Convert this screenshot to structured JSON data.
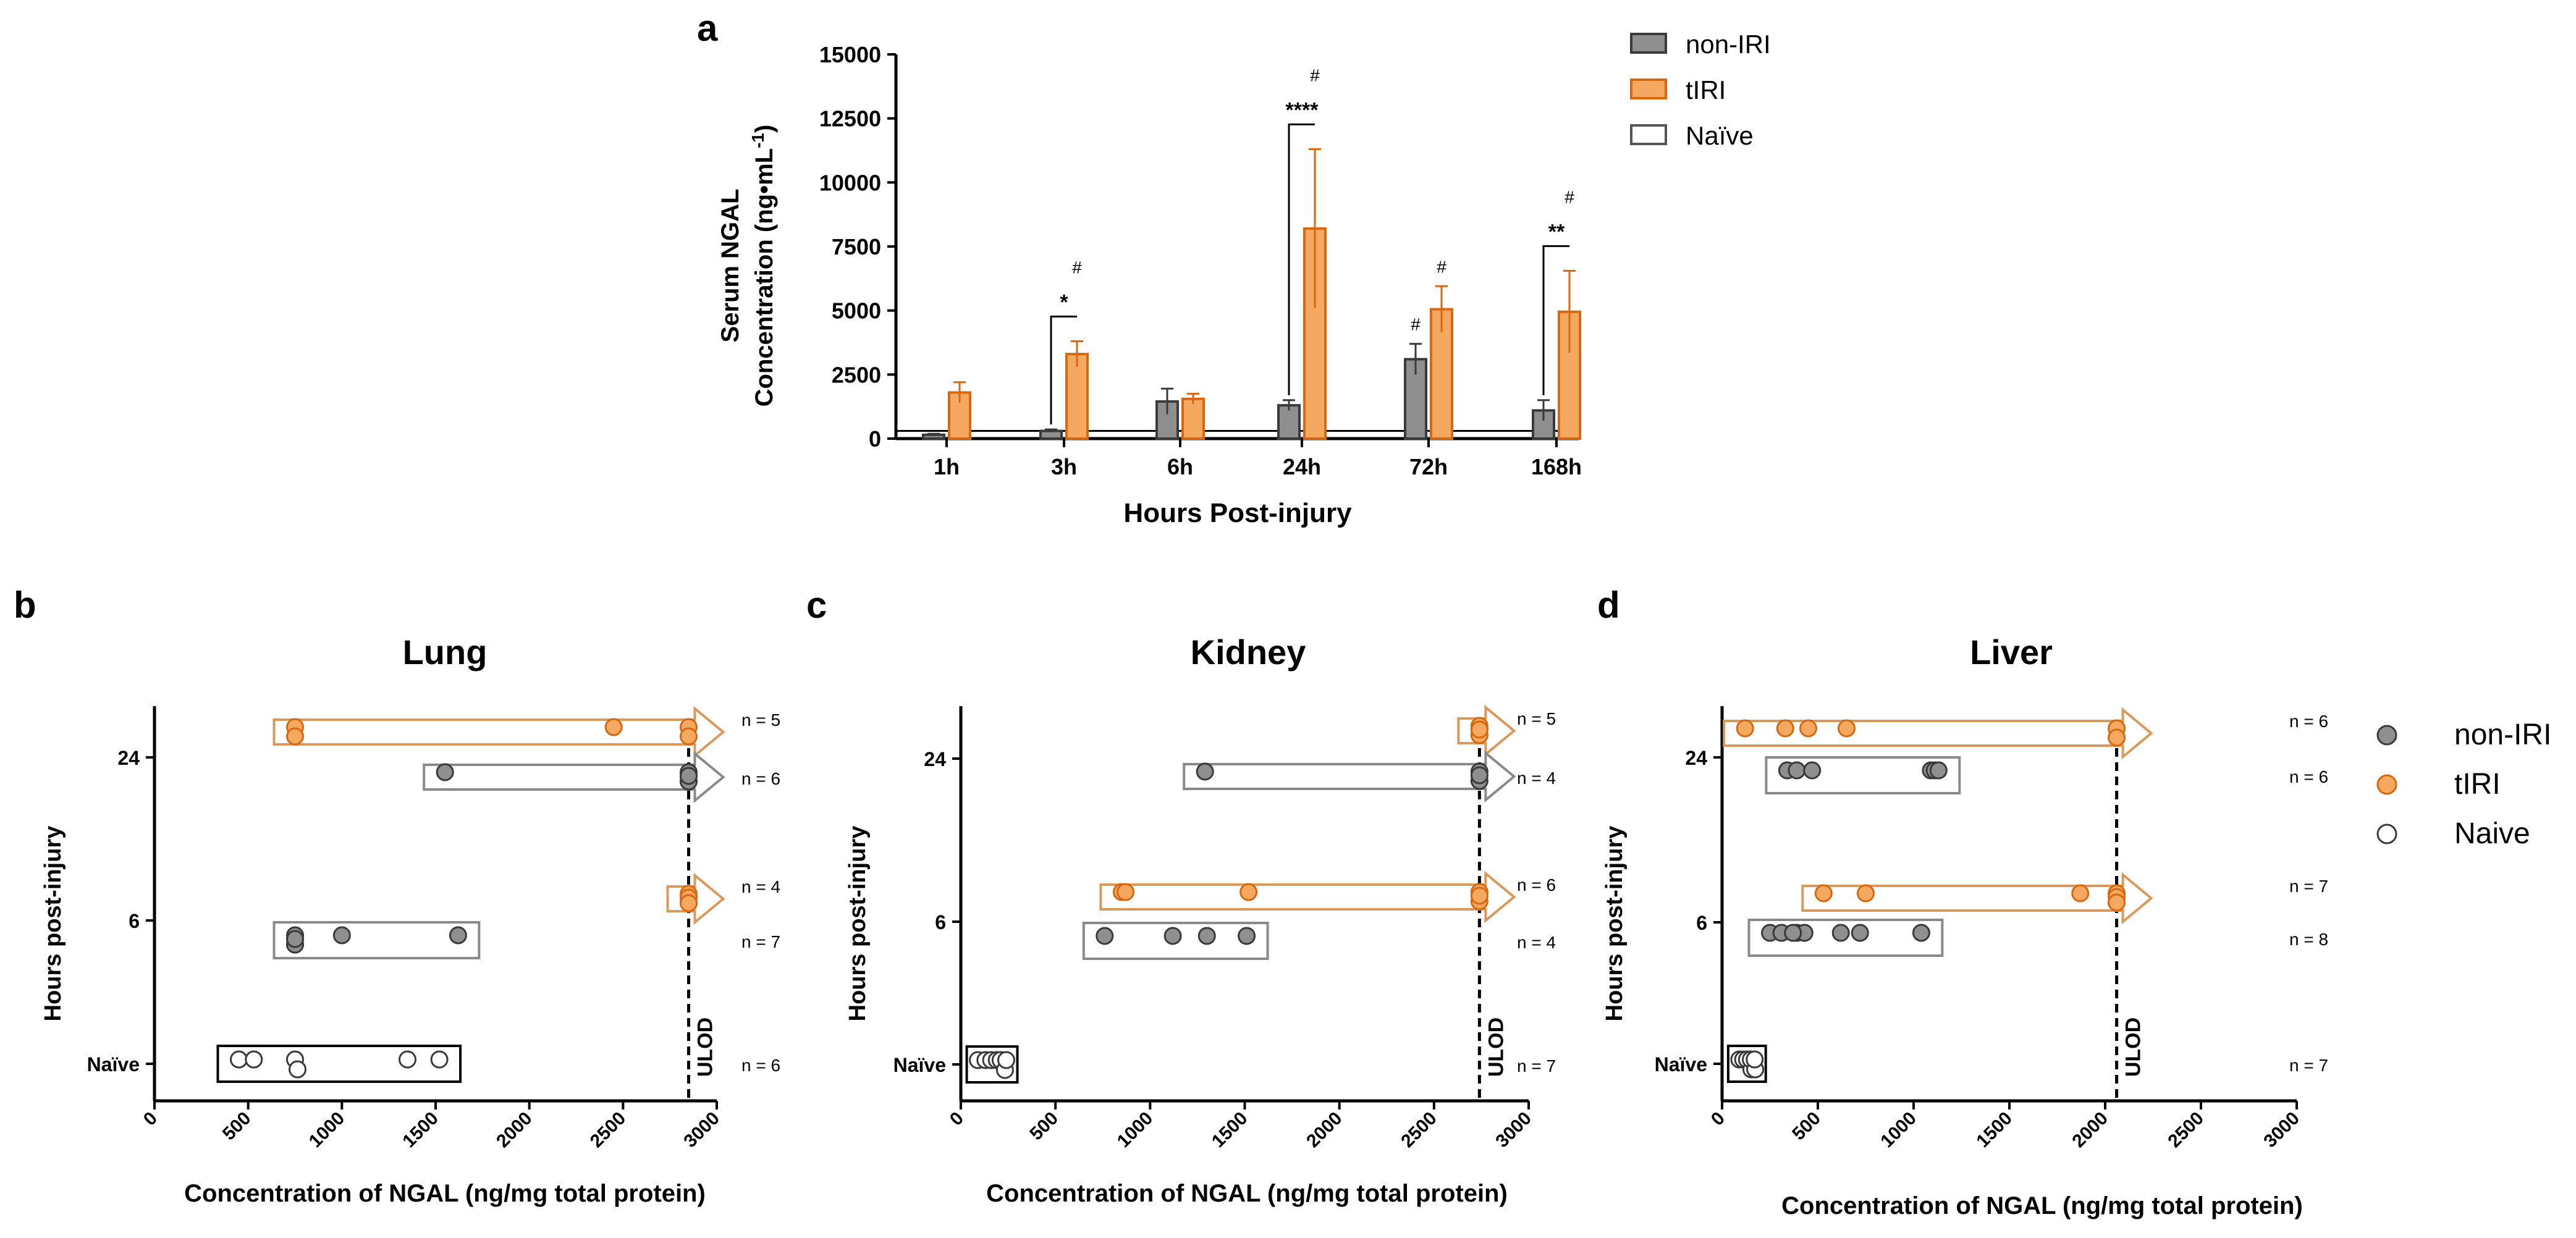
{
  "figure": {
    "panel_labels": [
      "a",
      "b",
      "c",
      "d"
    ],
    "legend_top": [
      "non-IRI",
      "tIRI",
      "Naïve"
    ],
    "legend_right": [
      "non-IRI",
      "tIRI",
      "Naive"
    ],
    "colors": {
      "nonIRI": "#8f8f8f",
      "tIRI": "#f5a860",
      "tIRI_stroke": "#d8680f",
      "naive": "#ffffff",
      "edge": "#3a3a3a"
    }
  },
  "chart_data": [
    {
      "type": "bar",
      "panel": "a",
      "ylabel": "Serum NGAL",
      "ylabel2": "Concentration (ng•mL",
      "ylabel_sup": "-1",
      "ylabel_close": ")",
      "xlabel": "Hours Post-injury",
      "categories": [
        "1h",
        "3h",
        "6h",
        "24h",
        "72h",
        "168h"
      ],
      "ylim": [
        0,
        15000
      ],
      "yticks": [
        0,
        2500,
        5000,
        7500,
        10000,
        12500,
        15000
      ],
      "naive_line": 300,
      "series": [
        {
          "name": "non-IRI",
          "values": [
            150,
            300,
            1450,
            1300,
            3100,
            1100
          ],
          "errors": [
            40,
            60,
            500,
            200,
            600,
            400
          ]
        },
        {
          "name": "tIRI",
          "values": [
            1800,
            3300,
            1550,
            8200,
            5050,
            4950
          ],
          "errors": [
            400,
            500,
            200,
            3100,
            900,
            1600
          ]
        }
      ],
      "significance": [
        {
          "category": "3h",
          "stars": "*",
          "hash": "#"
        },
        {
          "category": "24h",
          "stars": "****",
          "hash": "#"
        },
        {
          "category": "168h",
          "stars": "**",
          "hash": "#"
        }
      ],
      "hash_only": [
        {
          "category": "72h",
          "series": "non-IRI",
          "hash": "#"
        },
        {
          "category": "72h",
          "series": "tIRI",
          "hash": "#"
        }
      ]
    },
    {
      "type": "scatter",
      "panel": "b",
      "title": "Lung",
      "xlabel": "Concentration of NGAL (ng/mg total protein)",
      "ylabel": "Hours post-injury",
      "xlim": [
        0,
        3000
      ],
      "xticks": [
        0,
        500,
        1000,
        1500,
        2000,
        2500,
        3000
      ],
      "yticks": [
        "24",
        "6",
        "Naïve"
      ],
      "ulod": 2850,
      "ulod_label": "ULOD",
      "groups": [
        {
          "row": "24",
          "series": "tIRI",
          "n": "n = 5",
          "arrow": true,
          "x": [
            750,
            750,
            2450,
            2850,
            2850
          ]
        },
        {
          "row": "24",
          "series": "non-IRI",
          "n": "n = 6",
          "arrow": true,
          "x": [
            1550,
            2850,
            2850,
            2850,
            2850,
            2850
          ]
        },
        {
          "row": "6",
          "series": "tIRI",
          "n": "n = 4",
          "arrow": true,
          "x": [
            2850,
            2850,
            2850,
            2850
          ]
        },
        {
          "row": "6",
          "series": "non-IRI",
          "n": "n = 7",
          "arrow": false,
          "x": [
            750,
            750,
            750,
            750,
            750,
            1000,
            1620
          ]
        },
        {
          "row": "Naïve",
          "series": "Naive",
          "n": "n = 6",
          "arrow": false,
          "x": [
            450,
            530,
            750,
            750,
            1350,
            1520
          ]
        }
      ]
    },
    {
      "type": "scatter",
      "panel": "c",
      "title": "Kidney",
      "xlabel": "Concentration of NGAL (ng/mg total protein)",
      "ylabel": "Hours post-injury",
      "xlim": [
        0,
        3000
      ],
      "xticks": [
        0,
        500,
        1000,
        1500,
        2000,
        2500,
        3000
      ],
      "yticks": [
        "24",
        "6",
        "Naïve"
      ],
      "ulod": 2740,
      "ulod_label": "ULOD",
      "groups": [
        {
          "row": "24",
          "series": "tIRI",
          "n": "n = 5",
          "arrow": true,
          "x": [
            2740,
            2740,
            2740,
            2740,
            2740
          ]
        },
        {
          "row": "24",
          "series": "non-IRI",
          "n": "n = 4",
          "arrow": true,
          "x": [
            1290,
            2740,
            2740,
            2740
          ]
        },
        {
          "row": "6",
          "series": "tIRI",
          "n": "n = 6",
          "arrow": true,
          "x": [
            850,
            870,
            1520,
            2740,
            2740,
            2740
          ]
        },
        {
          "row": "6",
          "series": "non-IRI",
          "n": "n = 4",
          "arrow": false,
          "x": [
            760,
            1120,
            1300,
            1510
          ]
        },
        {
          "row": "Naïve",
          "series": "Naive",
          "n": "n = 7",
          "arrow": false,
          "x": [
            90,
            130,
            160,
            190,
            210,
            220,
            240
          ]
        }
      ]
    },
    {
      "type": "scatter",
      "panel": "d",
      "title": "Liver",
      "xlabel": "Concentration of NGAL (ng/mg total protein)",
      "ylabel": "Hours post-injury",
      "xlim": [
        0,
        3000
      ],
      "xticks": [
        0,
        500,
        1000,
        1500,
        2000,
        2500,
        3000
      ],
      "yticks": [
        "24",
        "6",
        "Naïve"
      ],
      "ulod": 2060,
      "ulod_label": "ULOD",
      "groups": [
        {
          "row": "24",
          "series": "tIRI",
          "n": "n = 6",
          "arrow": true,
          "x": [
            120,
            330,
            450,
            650,
            2060,
            2060
          ]
        },
        {
          "row": "24",
          "series": "non-IRI",
          "n": "n = 6",
          "arrow": false,
          "x": [
            340,
            390,
            470,
            1090,
            1110,
            1130
          ]
        },
        {
          "row": "6",
          "series": "tIRI",
          "n": "n = 7",
          "arrow": true,
          "x": [
            530,
            750,
            1870,
            2060,
            2060,
            2060,
            2060
          ]
        },
        {
          "row": "6",
          "series": "non-IRI",
          "n": "n = 8",
          "arrow": false,
          "x": [
            250,
            310,
            390,
            430,
            620,
            720,
            1040,
            370
          ]
        },
        {
          "row": "Naïve",
          "series": "Naive",
          "n": "n = 7",
          "arrow": false,
          "x": [
            90,
            110,
            130,
            140,
            150,
            160,
            170
          ]
        }
      ]
    }
  ]
}
